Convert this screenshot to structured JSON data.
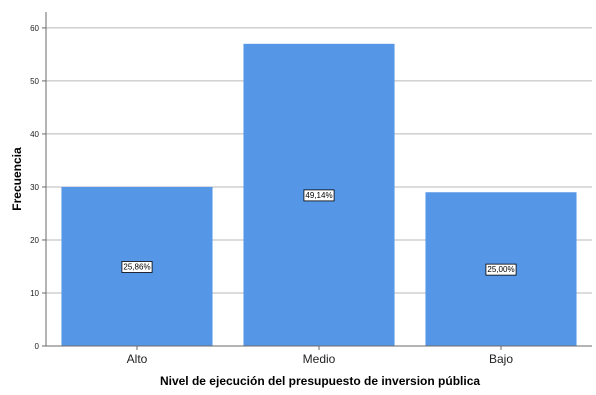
{
  "chart_data": {
    "type": "bar",
    "title": "",
    "xlabel": "Nivel de ejecución del presupuesto de inversion pública",
    "ylabel": "Frecuencia",
    "categories": [
      "Alto",
      "Medio",
      "Bajo"
    ],
    "values": [
      30,
      57,
      29
    ],
    "data_labels": [
      "25,86%",
      "49,14%",
      "25,00%"
    ],
    "ylim": [
      0,
      63
    ],
    "yticks": [
      0,
      10,
      20,
      30,
      40,
      50,
      60
    ],
    "grid": true,
    "legend": "none",
    "colors": {
      "bar": "#5596e6",
      "grid": "#b9b9b9",
      "axis": "#6a6a6a"
    }
  }
}
